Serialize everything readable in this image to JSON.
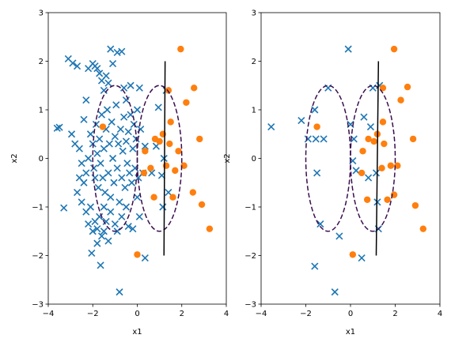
{
  "chart_data": [
    {
      "type": "scatter",
      "xlabel": "x1",
      "ylabel": "x2",
      "xlim": [
        -4,
        4
      ],
      "ylim": [
        -3,
        3
      ],
      "xticks": [
        -4,
        -2,
        0,
        2,
        4
      ],
      "yticks": [
        -3,
        -2,
        -1,
        0,
        1,
        2,
        3
      ],
      "grid": false,
      "colors": {
        "class0": "#1f77b4",
        "class1": "#ff7f0e",
        "ellipse": "#3b0f4f",
        "boundary": "#000000"
      },
      "series": [
        {
          "marker": "x",
          "color": "#1f77b4",
          "points": [
            [
              -3.6,
              0.62
            ],
            [
              -3.5,
              0.64
            ],
            [
              -3.3,
              -1.02
            ],
            [
              -3.1,
              2.05
            ],
            [
              -2.9,
              1.96
            ],
            [
              -2.95,
              0.5
            ],
            [
              -2.8,
              0.3
            ],
            [
              -2.7,
              1.9
            ],
            [
              -2.6,
              0.2
            ],
            [
              -2.5,
              -0.1
            ],
            [
              -2.4,
              0.8
            ],
            [
              -2.3,
              1.2
            ],
            [
              -2.2,
              1.85
            ],
            [
              -2.0,
              1.95
            ],
            [
              -1.9,
              1.9
            ],
            [
              -1.8,
              1.85
            ],
            [
              -1.7,
              1.75
            ],
            [
              -1.6,
              1.6
            ],
            [
              -1.5,
              1.4
            ],
            [
              -1.4,
              1.7
            ],
            [
              -1.3,
              1.55
            ],
            [
              -1.1,
              1.95
            ],
            [
              -1.2,
              2.25
            ],
            [
              -0.9,
              2.18
            ],
            [
              -0.7,
              2.2
            ],
            [
              -0.6,
              1.45
            ],
            [
              -0.5,
              1.2
            ],
            [
              -0.3,
              1.5
            ],
            [
              0.1,
              1.45
            ],
            [
              -2.6,
              -0.4
            ],
            [
              -2.4,
              -0.5
            ],
            [
              -2.3,
              -0.3
            ],
            [
              -2.2,
              0.0
            ],
            [
              -2.1,
              0.5
            ],
            [
              -2.0,
              0.3
            ],
            [
              -1.95,
              -0.2
            ],
            [
              -1.9,
              -0.4
            ],
            [
              -1.85,
              0.7
            ],
            [
              -1.8,
              0.1
            ],
            [
              -1.75,
              -0.6
            ],
            [
              -1.7,
              0.4
            ],
            [
              -1.65,
              -0.1
            ],
            [
              -1.6,
              0.9
            ],
            [
              -1.55,
              -0.4
            ],
            [
              -1.5,
              0.2
            ],
            [
              -1.45,
              -0.7
            ],
            [
              -1.4,
              0.6
            ],
            [
              -1.35,
              1.0
            ],
            [
              -1.3,
              -0.3
            ],
            [
              -1.25,
              0.3
            ],
            [
              -1.2,
              -0.8
            ],
            [
              -1.15,
              0.75
            ],
            [
              -1.1,
              0.0
            ],
            [
              -1.05,
              -0.5
            ],
            [
              -1.0,
              0.45
            ],
            [
              -0.95,
              1.1
            ],
            [
              -0.9,
              -0.2
            ],
            [
              -0.85,
              0.3
            ],
            [
              -0.8,
              -0.9
            ],
            [
              -0.75,
              0.6
            ],
            [
              -0.7,
              -0.4
            ],
            [
              -0.65,
              0.15
            ],
            [
              -0.6,
              0.85
            ],
            [
              -0.55,
              -0.6
            ],
            [
              -0.5,
              0.35
            ],
            [
              -0.45,
              -0.1
            ],
            [
              -0.4,
              0.55
            ],
            [
              -0.35,
              -0.3
            ],
            [
              -0.3,
              0.9
            ],
            [
              -0.25,
              -0.5
            ],
            [
              -0.2,
              0.2
            ],
            [
              -0.15,
              0.7
            ],
            [
              -0.1,
              -0.2
            ],
            [
              -0.05,
              0.4
            ],
            [
              0.0,
              1.0
            ],
            [
              0.05,
              -0.4
            ],
            [
              0.15,
              0.6
            ],
            [
              0.25,
              -0.3
            ],
            [
              0.35,
              0.25
            ],
            [
              -2.7,
              -0.7
            ],
            [
              -2.5,
              -0.9
            ],
            [
              -2.3,
              -1.1
            ],
            [
              -2.2,
              -1.35
            ],
            [
              -2.1,
              -1.0
            ],
            [
              -2.0,
              -1.5
            ],
            [
              -1.9,
              -1.3
            ],
            [
              -1.8,
              -1.45
            ],
            [
              -1.7,
              -1.2
            ],
            [
              -1.6,
              -1.6
            ],
            [
              -1.5,
              -1.0
            ],
            [
              -1.4,
              -1.3
            ],
            [
              -1.3,
              -1.7
            ],
            [
              -1.2,
              -1.1
            ],
            [
              -1.0,
              -1.35
            ],
            [
              -0.9,
              -1.5
            ],
            [
              -0.7,
              -1.2
            ],
            [
              -0.5,
              -1.0
            ],
            [
              -0.4,
              -1.4
            ],
            [
              -0.2,
              -1.45
            ],
            [
              0.0,
              -0.8
            ],
            [
              0.1,
              -1.2
            ],
            [
              -2.05,
              -1.95
            ],
            [
              -1.8,
              -1.75
            ],
            [
              -1.65,
              -2.2
            ],
            [
              -1.5,
              -1.5
            ],
            [
              -0.8,
              -2.75
            ],
            [
              0.35,
              -2.05
            ],
            [
              0.65,
              -0.3
            ],
            [
              0.85,
              0.25
            ],
            [
              0.95,
              1.05
            ],
            [
              1.1,
              -0.35
            ],
            [
              1.15,
              -1.0
            ],
            [
              1.2,
              0.0
            ],
            [
              1.3,
              1.4
            ],
            [
              1.4,
              -0.7
            ]
          ]
        },
        {
          "marker": "o",
          "color": "#ff7f0e",
          "points": [
            [
              -1.55,
              0.65
            ],
            [
              0.0,
              -1.98
            ],
            [
              0.3,
              -0.3
            ],
            [
              0.35,
              0.15
            ],
            [
              0.6,
              -0.2
            ],
            [
              0.8,
              0.4
            ],
            [
              1.0,
              0.35
            ],
            [
              1.15,
              0.5
            ],
            [
              1.3,
              -0.15
            ],
            [
              1.4,
              1.4
            ],
            [
              1.45,
              0.3
            ],
            [
              1.6,
              -0.8
            ],
            [
              1.7,
              -0.25
            ],
            [
              1.85,
              0.15
            ],
            [
              1.95,
              2.25
            ],
            [
              2.1,
              -0.15
            ],
            [
              2.2,
              1.15
            ],
            [
              2.5,
              -0.7
            ],
            [
              2.55,
              1.45
            ],
            [
              2.8,
              0.4
            ],
            [
              2.9,
              -0.95
            ],
            [
              3.25,
              -1.45
            ],
            [
              1.5,
              0.75
            ],
            [
              0.75,
              -0.8
            ]
          ]
        }
      ],
      "ellipses": [
        {
          "cx": -1.0,
          "cy": 0.0,
          "rx": 1.0,
          "ry": 1.5,
          "style": "dashed"
        },
        {
          "cx": 1.0,
          "cy": 0.0,
          "rx": 1.0,
          "ry": 1.5,
          "style": "dashed"
        }
      ],
      "boundary_line": {
        "x": [
          1.25,
          1.2
        ],
        "y": [
          2.0,
          -2.0
        ]
      }
    },
    {
      "type": "scatter",
      "xlabel": "x1",
      "ylabel": "x2",
      "xlim": [
        -4,
        4
      ],
      "ylim": [
        -3,
        3
      ],
      "xticks": [
        -4,
        -2,
        0,
        2,
        4
      ],
      "yticks": [
        -3,
        -2,
        -1,
        0,
        1,
        2,
        3
      ],
      "grid": false,
      "colors": {
        "class0": "#1f77b4",
        "class1": "#ff7f0e",
        "ellipse": "#3b0f4f",
        "boundary": "#000000"
      },
      "series": [
        {
          "marker": "x",
          "color": "#1f77b4",
          "points": [
            [
              -3.55,
              0.65
            ],
            [
              -2.2,
              0.78
            ],
            [
              -1.9,
              0.4
            ],
            [
              -1.6,
              1.0
            ],
            [
              -1.55,
              0.4
            ],
            [
              -1.5,
              -0.3
            ],
            [
              -1.2,
              0.4
            ],
            [
              -1.0,
              1.45
            ],
            [
              -1.6,
              -2.22
            ],
            [
              -1.35,
              -1.35
            ],
            [
              -0.7,
              -2.75
            ],
            [
              -0.5,
              -1.6
            ],
            [
              -0.1,
              2.25
            ],
            [
              0.0,
              0.7
            ],
            [
              0.1,
              -0.05
            ],
            [
              0.15,
              0.4
            ],
            [
              0.25,
              -0.25
            ],
            [
              0.5,
              -2.05
            ],
            [
              0.6,
              0.85
            ],
            [
              0.8,
              -0.4
            ],
            [
              0.9,
              0.65
            ],
            [
              1.0,
              1.45
            ],
            [
              1.15,
              -0.3
            ],
            [
              1.3,
              1.5
            ],
            [
              1.2,
              -0.9
            ],
            [
              1.25,
              -1.45
            ]
          ]
        },
        {
          "marker": "o",
          "color": "#ff7f0e",
          "points": [
            [
              -1.5,
              0.65
            ],
            [
              0.1,
              -1.98
            ],
            [
              0.5,
              -0.3
            ],
            [
              0.55,
              0.15
            ],
            [
              0.8,
              0.4
            ],
            [
              1.05,
              0.35
            ],
            [
              1.2,
              0.5
            ],
            [
              1.4,
              -0.2
            ],
            [
              1.45,
              1.45
            ],
            [
              1.5,
              0.3
            ],
            [
              1.65,
              -0.85
            ],
            [
              1.8,
              -0.15
            ],
            [
              1.95,
              2.25
            ],
            [
              1.95,
              -0.75
            ],
            [
              2.1,
              -0.15
            ],
            [
              2.25,
              1.2
            ],
            [
              2.55,
              1.47
            ],
            [
              2.8,
              0.4
            ],
            [
              2.9,
              -0.97
            ],
            [
              3.25,
              -1.45
            ],
            [
              0.75,
              -0.85
            ],
            [
              1.45,
              0.75
            ]
          ]
        }
      ],
      "ellipses": [
        {
          "cx": -1.0,
          "cy": 0.0,
          "rx": 1.0,
          "ry": 1.5,
          "style": "dashed"
        },
        {
          "cx": 1.0,
          "cy": 0.0,
          "rx": 1.0,
          "ry": 1.5,
          "style": "dashed"
        }
      ],
      "boundary_line": {
        "x": [
          1.25,
          1.15
        ],
        "y": [
          2.0,
          -2.0
        ]
      }
    }
  ]
}
